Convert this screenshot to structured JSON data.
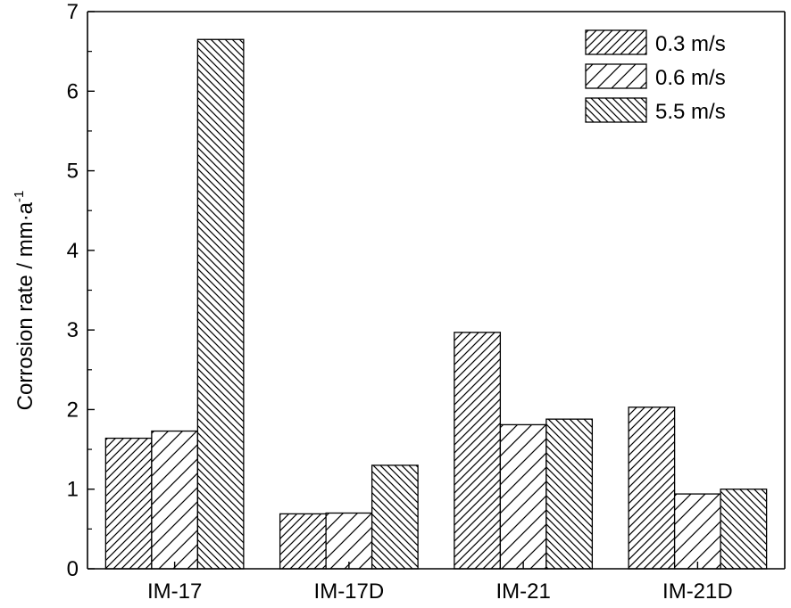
{
  "chart_data": {
    "type": "bar",
    "categories": [
      "IM-17",
      "IM-17D",
      "IM-21",
      "IM-21D"
    ],
    "series": [
      {
        "name": "0.3 m/s",
        "values": [
          1.64,
          0.69,
          2.97,
          2.03
        ],
        "pattern": "hatch-fwd-dense"
      },
      {
        "name": "0.6 m/s",
        "values": [
          1.73,
          0.7,
          1.81,
          0.94
        ],
        "pattern": "hatch-fwd-sparse"
      },
      {
        "name": "5.5 m/s",
        "values": [
          6.65,
          1.3,
          1.88,
          1.0
        ],
        "pattern": "hatch-back-dense"
      }
    ],
    "title": "",
    "xlabel": "",
    "ylabel": "Corrosion rate / mm·a",
    "ylabel_superscript": "-1",
    "ylim": [
      0,
      7
    ],
    "yticks": [
      0,
      1,
      2,
      3,
      4,
      5,
      6,
      7
    ],
    "grid": false,
    "legend_position": "top-right",
    "bar_fill": "#ffffff",
    "bar_stroke": "#000000"
  }
}
